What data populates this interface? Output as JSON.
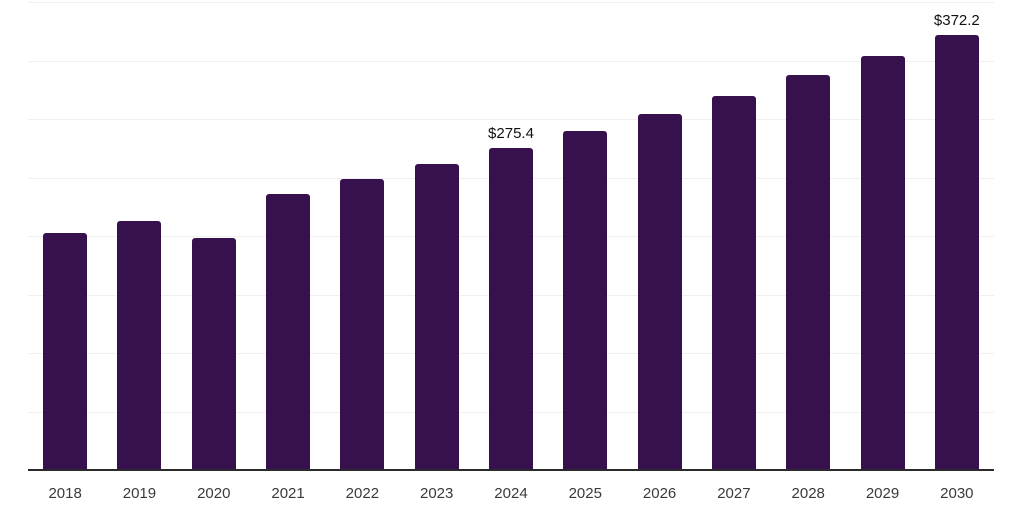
{
  "chart_data": {
    "type": "bar",
    "title": "",
    "xlabel": "",
    "ylabel": "",
    "categories": [
      "2018",
      "2019",
      "2020",
      "2021",
      "2022",
      "2023",
      "2024",
      "2025",
      "2026",
      "2027",
      "2028",
      "2029",
      "2030"
    ],
    "values": [
      202.4,
      213.0,
      198.4,
      235.9,
      248.6,
      261.9,
      275.4,
      289.8,
      304.1,
      319.6,
      337.4,
      353.8,
      372.2
    ],
    "data_labels": [
      {
        "index": 6,
        "text": "$275.4"
      },
      {
        "index": 12,
        "text": "$372.2"
      }
    ],
    "ylim": [
      0,
      400
    ],
    "grid_step": 50,
    "grid": true,
    "y_tick_labels_visible": false,
    "legend_position": "none"
  },
  "colors": {
    "background": "#FFFFFF",
    "bar": "#37114E",
    "gridline": "#EFEFEF",
    "axis_line": "#2B2B2B",
    "tick_label": "#3A3A3A",
    "data_label": "#111111"
  }
}
